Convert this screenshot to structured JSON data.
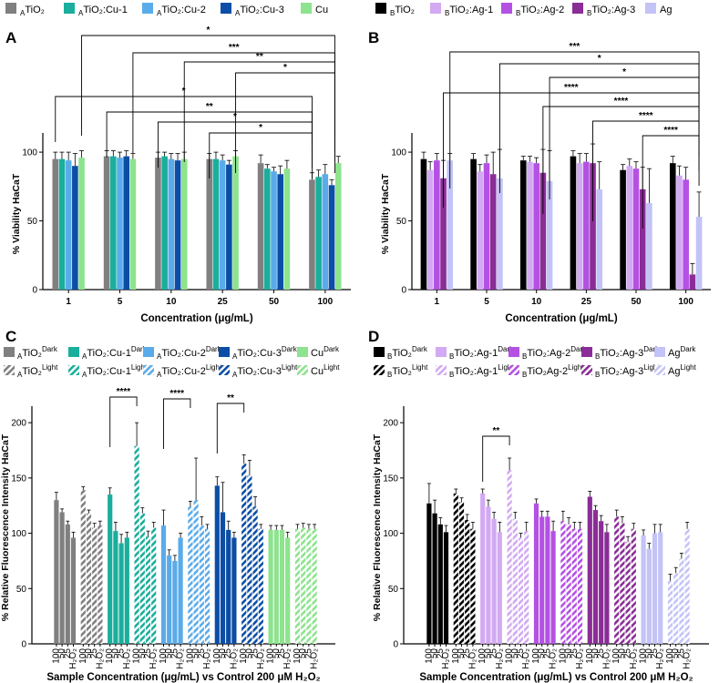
{
  "panel_letters": [
    "A",
    "B",
    "C",
    "D"
  ],
  "colors": {
    "A": [
      "#808080",
      "#1aae9c",
      "#5aabea",
      "#0c4ea6",
      "#8de38e"
    ],
    "B": [
      "#000000",
      "#d2a9f2",
      "#b451e3",
      "#8a2d96",
      "#c3c3f7"
    ]
  },
  "chart_data": [
    {
      "panel": "A",
      "type": "bar",
      "xlabel": "Concentration (μg/mL)",
      "ylabel": "% Viability HaCaT",
      "ylim": [
        0,
        110
      ],
      "yticks": [
        0,
        50,
        100
      ],
      "categories": [
        "1",
        "5",
        "10",
        "25",
        "50",
        "100"
      ],
      "legend": [
        {
          "sub": "A",
          "main": "TiO₂"
        },
        {
          "sub": "A",
          "main": "TiO₂:Cu-1"
        },
        {
          "sub": "A",
          "main": "TiO₂:Cu-2"
        },
        {
          "sub": "A",
          "main": "TiO₂:Cu-3"
        },
        {
          "sub": "",
          "main": "Cu"
        }
      ],
      "series": [
        {
          "name": "ATiO2",
          "values": [
            95,
            97,
            96,
            95,
            92,
            80
          ],
          "errors": [
            5,
            4,
            4,
            4,
            6,
            5
          ]
        },
        {
          "name": "ATiO2:Cu-1",
          "values": [
            95,
            97,
            97,
            95,
            88,
            82
          ],
          "errors": [
            5,
            4,
            3,
            5,
            3,
            5
          ]
        },
        {
          "name": "ATiO2:Cu-2",
          "values": [
            94,
            96,
            95,
            94,
            86,
            84
          ],
          "errors": [
            6,
            4,
            4,
            4,
            3,
            7
          ]
        },
        {
          "name": "ATiO2:Cu-3",
          "values": [
            90,
            97,
            94,
            91,
            84,
            76
          ],
          "errors": [
            9,
            4,
            5,
            3,
            6,
            4
          ]
        },
        {
          "name": "Cu",
          "values": [
            96,
            95,
            95,
            97,
            88,
            92
          ],
          "errors": [
            5,
            4,
            5,
            4,
            6,
            5
          ]
        }
      ],
      "brackets_top": [
        "*",
        "***",
        "**",
        "*"
      ],
      "brackets_bottom": [
        "*",
        "**",
        "*",
        "*"
      ]
    },
    {
      "panel": "B",
      "type": "bar",
      "xlabel": "Concentration (μg/mL)",
      "ylabel": "% Viability HaCaT",
      "ylim": [
        0,
        110
      ],
      "yticks": [
        0,
        50,
        100
      ],
      "categories": [
        "1",
        "5",
        "10",
        "25",
        "50",
        "100"
      ],
      "legend": [
        {
          "sub": "B",
          "main": "TiO₂"
        },
        {
          "sub": "B",
          "main": "TiO₂:Ag-1"
        },
        {
          "sub": "B",
          "main": "TiO₂:Ag-2"
        },
        {
          "sub": "B",
          "main": "TiO₂:Ag-3"
        },
        {
          "sub": "",
          "main": "Ag"
        }
      ],
      "series": [
        {
          "name": "BTiO2",
          "values": [
            95,
            95,
            94,
            97,
            87,
            92
          ],
          "errors": [
            5,
            4,
            3,
            4,
            4,
            5
          ]
        },
        {
          "name": "BTiO2:Ag-1",
          "values": [
            87,
            86,
            93,
            92,
            90,
            83
          ],
          "errors": [
            6,
            5,
            4,
            7,
            5,
            7
          ]
        },
        {
          "name": "BTiO2:Ag-2",
          "values": [
            94,
            92,
            92,
            93,
            88,
            80
          ],
          "errors": [
            5,
            6,
            4,
            6,
            5,
            9
          ]
        },
        {
          "name": "BTiO2:Ag-3",
          "values": [
            81,
            84,
            85,
            92,
            73,
            11
          ],
          "errors": [
            13,
            16,
            17,
            14,
            16,
            8
          ]
        },
        {
          "name": "Ag",
          "values": [
            94,
            81,
            79,
            73,
            63,
            53
          ],
          "errors": [
            5,
            21,
            22,
            20,
            25,
            18
          ]
        }
      ],
      "brackets": [
        "***",
        "*",
        "*",
        "****",
        "****",
        "****",
        "****"
      ]
    },
    {
      "panel": "C",
      "type": "bar",
      "xlabel": "Sample Concentration (μg/mL) vs Control 200 μM H₂O₂",
      "ylabel": "% Relative Fluorescence Intensity HaCaT",
      "ylim": [
        0,
        210
      ],
      "yticks": [
        0,
        50,
        100,
        150,
        200
      ],
      "group_tick_labels": [
        "100",
        "50",
        "25",
        "H₂O₂"
      ],
      "legend_dark": [
        "ATiO₂",
        "ATiO₂:Cu-1",
        "ATiO₂:Cu-2",
        "ATiO₂:Cu-3",
        "Cu"
      ],
      "legend_light": [
        "ATiO₂",
        "ATiO₂:Cu-1",
        "ATiO₂:Cu-2",
        "ATiO₂:Cu-3",
        "Cu"
      ],
      "legend_sup_dark": "Dark",
      "legend_sup_light": "Light",
      "groups": [
        {
          "name": "ATiO2 Dark",
          "values": [
            130,
            119,
            108,
            96
          ],
          "errors": [
            7,
            3,
            3,
            5
          ]
        },
        {
          "name": "ATiO2 Light",
          "values": [
            139,
            118,
            105,
            107
          ],
          "errors": [
            3,
            3,
            4,
            4
          ]
        },
        {
          "name": "ATiO2:Cu-1 Dark",
          "values": [
            135,
            102,
            91,
            96
          ],
          "errors": [
            6,
            8,
            8,
            5
          ]
        },
        {
          "name": "ATiO2:Cu-1 Light",
          "values": [
            179,
            118,
            97,
            105
          ],
          "errors": [
            21,
            5,
            5,
            5
          ]
        },
        {
          "name": "ATiO2:Cu-2 Dark",
          "values": [
            107,
            80,
            75,
            96
          ],
          "errors": [
            14,
            5,
            5,
            4
          ]
        },
        {
          "name": "ATiO2:Cu-2 Light",
          "values": [
            124,
            130,
            107,
            104
          ],
          "errors": [
            5,
            38,
            8,
            4
          ]
        },
        {
          "name": "ATiO2:Cu-3 Dark",
          "values": [
            143,
            119,
            103,
            96
          ],
          "errors": [
            8,
            27,
            8,
            5
          ]
        },
        {
          "name": "ATiO2:Cu-3 Light",
          "values": [
            163,
            152,
            124,
            104
          ],
          "errors": [
            8,
            14,
            9,
            4
          ]
        },
        {
          "name": "Cu Dark",
          "values": [
            103,
            103,
            103,
            96
          ],
          "errors": [
            4,
            4,
            4,
            5
          ]
        },
        {
          "name": "Cu Light",
          "values": [
            104,
            105,
            104,
            104
          ],
          "errors": [
            4,
            4,
            4,
            4
          ]
        }
      ],
      "brackets": [
        "****",
        "****",
        "**"
      ]
    },
    {
      "panel": "D",
      "type": "bar",
      "xlabel": "Sample Concentration (μg/mL) vs Control 200 μM H₂O₂",
      "ylabel": "% Relative Fluorescence Intensity HaCaT",
      "ylim": [
        0,
        210
      ],
      "yticks": [
        0,
        50,
        100,
        150,
        200
      ],
      "group_tick_labels": [
        "100",
        "50",
        "25",
        "H₂O₂"
      ],
      "legend_dark": [
        "BTiO₂",
        "BTiO₂:Ag-1",
        "BTiO₂:Ag-2",
        "BTiO₂:Ag-3",
        "Ag"
      ],
      "legend_light": [
        "BTiO₂",
        "BTiO₂:Ag-1",
        "BTiO₂Ag-2",
        "BTiO₂:Ag-3",
        "Ag"
      ],
      "legend_sup_dark": "Dark",
      "legend_sup_light": "Light",
      "groups": [
        {
          "name": "BTiO2 Dark",
          "values": [
            127,
            118,
            108,
            101
          ],
          "errors": [
            18,
            12,
            6,
            6
          ]
        },
        {
          "name": "BTiO2 Light",
          "values": [
            136,
            128,
            112,
            104
          ],
          "errors": [
            4,
            4,
            5,
            6
          ]
        },
        {
          "name": "BTiO2:Ag-1 Dark",
          "values": [
            136,
            124,
            113,
            101
          ],
          "errors": [
            4,
            6,
            6,
            9
          ]
        },
        {
          "name": "BTiO2:Ag-1 Light",
          "values": [
            157,
            113,
            96,
            102
          ],
          "errors": [
            11,
            6,
            4,
            8
          ]
        },
        {
          "name": "BTiO2:Ag-2 Dark",
          "values": [
            127,
            115,
            115,
            102
          ],
          "errors": [
            4,
            5,
            5,
            9
          ]
        },
        {
          "name": "BTiO2:Ag-2 Light",
          "values": [
            111,
            108,
            104,
            104
          ],
          "errors": [
            9,
            6,
            6,
            6
          ]
        },
        {
          "name": "BTiO2:Ag-3 Dark",
          "values": [
            133,
            121,
            111,
            101
          ],
          "errors": [
            5,
            4,
            5,
            7
          ]
        },
        {
          "name": "BTiO2:Ag-3 Light",
          "values": [
            115,
            109,
            92,
            104
          ],
          "errors": [
            6,
            6,
            5,
            5
          ]
        },
        {
          "name": "Ag Dark",
          "values": [
            98,
            86,
            100,
            101
          ],
          "errors": [
            5,
            5,
            8,
            7
          ]
        },
        {
          "name": "Ag Light",
          "values": [
            57,
            64,
            77,
            104
          ],
          "errors": [
            6,
            5,
            5,
            6
          ]
        }
      ],
      "brackets": [
        "**"
      ]
    }
  ]
}
